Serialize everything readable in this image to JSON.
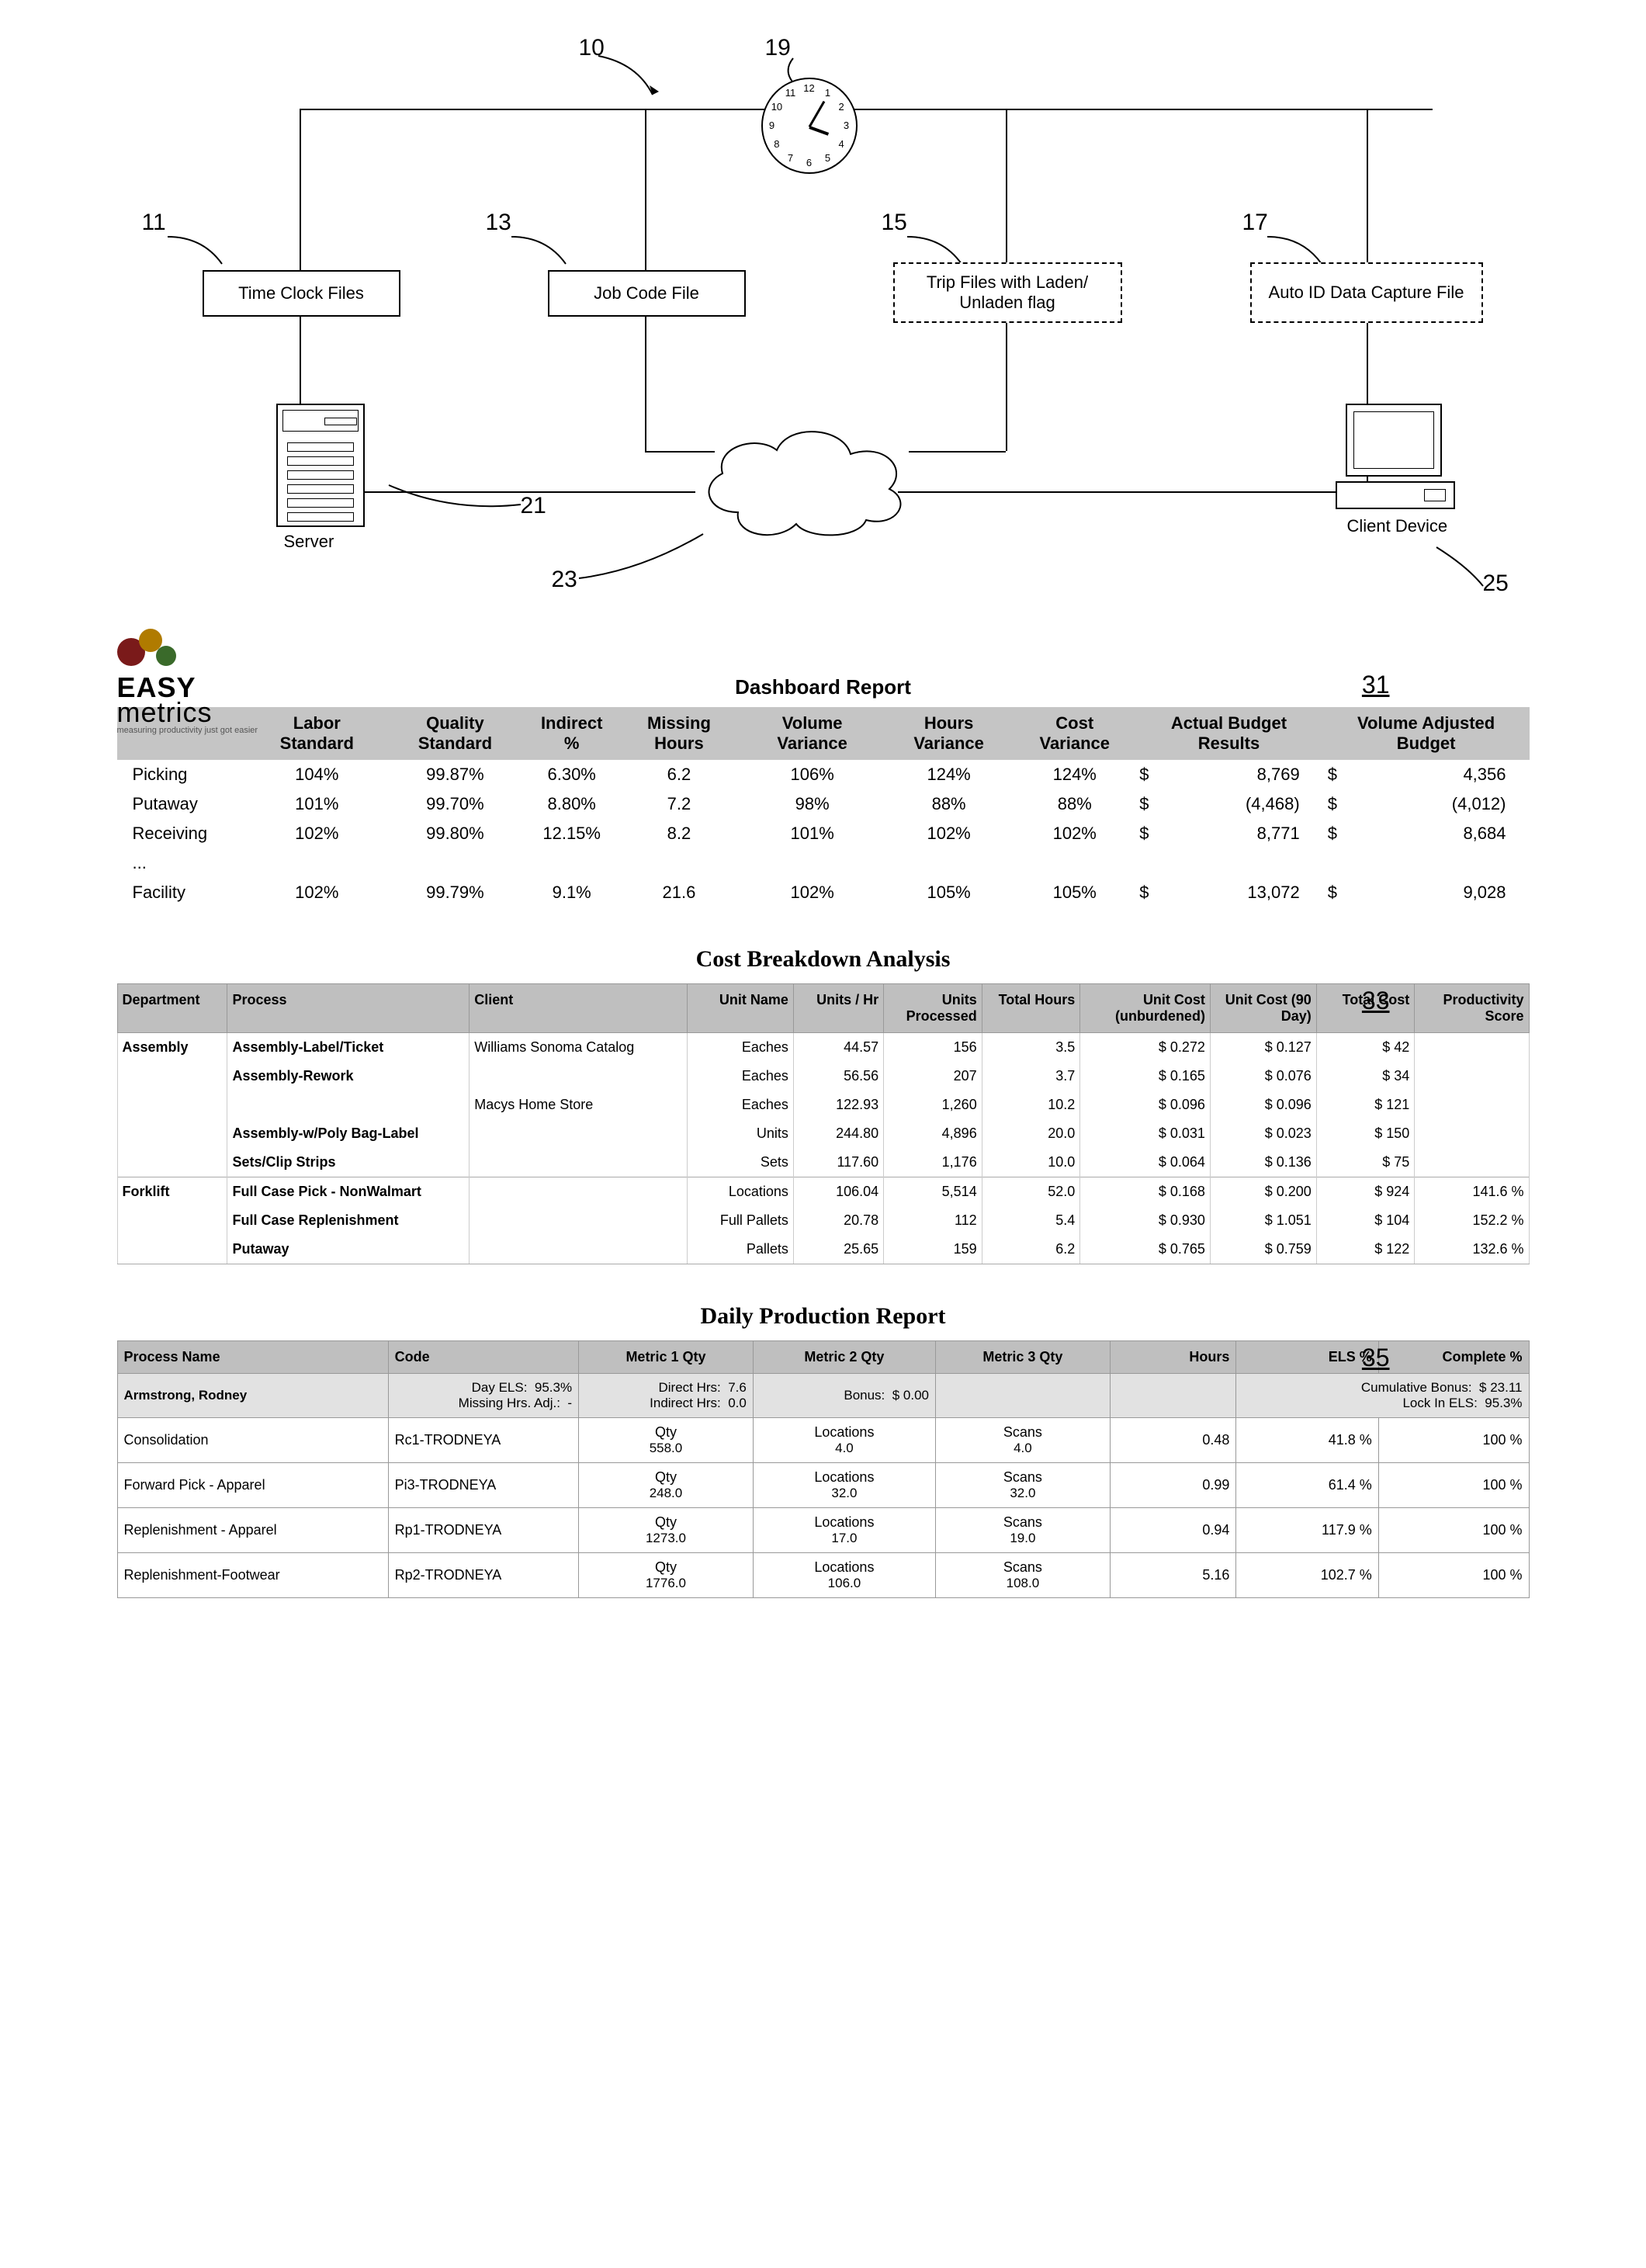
{
  "diagram": {
    "labels": {
      "n10": "10",
      "n11": "11",
      "n13": "13",
      "n15": "15",
      "n17": "17",
      "n19": "19",
      "n21": "21",
      "n23": "23",
      "n25": "25"
    },
    "boxes": {
      "timeclock": "Time Clock Files",
      "jobcode": "Job Code File",
      "tripfiles": "Trip Files with Laden/ Unladen flag",
      "autocapture": "Auto ID Data Capture File"
    },
    "captions": {
      "server": "Server",
      "client": "Client Device"
    },
    "clock_numbers": [
      "12",
      "1",
      "2",
      "3",
      "4",
      "5",
      "6",
      "7",
      "8",
      "9",
      "10",
      "11"
    ]
  },
  "dashboard": {
    "logo_line1": "EASY",
    "logo_line2": "metrics",
    "logo_sub": "measuring productivity just got easier",
    "title": "Dashboard Report",
    "fig": "31",
    "headers": [
      "",
      "Labor Standard",
      "Quality Standard",
      "Indirect %",
      "Missing Hours",
      "Volume Variance",
      "Hours Variance",
      "Cost Variance",
      "Actual Budget Results",
      "Volume Adjusted Budget"
    ],
    "rows": [
      [
        "Picking",
        "104%",
        "99.87%",
        "6.30%",
        "6.2",
        "106%",
        "124%",
        "124%",
        "$",
        "8,769",
        "$",
        "4,356"
      ],
      [
        "Putaway",
        "101%",
        "99.70%",
        "8.80%",
        "7.2",
        "98%",
        "88%",
        "88%",
        "$",
        "(4,468)",
        "$",
        "(4,012)"
      ],
      [
        "Receiving",
        "102%",
        "99.80%",
        "12.15%",
        "8.2",
        "101%",
        "102%",
        "102%",
        "$",
        "8,771",
        "$",
        "8,684"
      ]
    ],
    "ellipsis": "...",
    "facility": [
      "Facility",
      "102%",
      "99.79%",
      "9.1%",
      "21.6",
      "102%",
      "105%",
      "105%",
      "$",
      "13,072",
      "$",
      "9,028"
    ]
  },
  "cost": {
    "title": "Cost Breakdown Analysis",
    "fig": "33",
    "headers": [
      "Department",
      "Process",
      "Client",
      "Unit Name",
      "Units / Hr",
      "Units Processed",
      "Total Hours",
      "Unit Cost (unburdened)",
      "Unit Cost (90 Day)",
      "Total Cost",
      "Productivity Score"
    ],
    "rows": [
      {
        "dep": "Assembly",
        "proc": "Assembly-Label/Ticket",
        "client": "Williams Sonoma Catalog",
        "unit": "Eaches",
        "uph": "44.57",
        "up": "156",
        "th": "3.5",
        "uc1": "$ 0.272",
        "uc2": "$ 0.127",
        "tc": "$ 42",
        "ps": ""
      },
      {
        "dep": "",
        "proc": "Assembly-Rework",
        "client": "",
        "unit": "Eaches",
        "uph": "56.56",
        "up": "207",
        "th": "3.7",
        "uc1": "$ 0.165",
        "uc2": "$ 0.076",
        "tc": "$ 34",
        "ps": ""
      },
      {
        "dep": "",
        "proc": "",
        "client": "Macys Home Store",
        "unit": "Eaches",
        "uph": "122.93",
        "up": "1,260",
        "th": "10.2",
        "uc1": "$ 0.096",
        "uc2": "$ 0.096",
        "tc": "$ 121",
        "ps": ""
      },
      {
        "dep": "",
        "proc": "Assembly-w/Poly Bag-Label",
        "client": "",
        "unit": "Units",
        "uph": "244.80",
        "up": "4,896",
        "th": "20.0",
        "uc1": "$ 0.031",
        "uc2": "$ 0.023",
        "tc": "$ 150",
        "ps": ""
      },
      {
        "dep": "",
        "proc": "Sets/Clip Strips",
        "client": "",
        "unit": "Sets",
        "uph": "117.60",
        "up": "1,176",
        "th": "10.0",
        "uc1": "$ 0.064",
        "uc2": "$ 0.136",
        "tc": "$ 75",
        "ps": ""
      },
      {
        "dep": "Forklift",
        "proc": "Full Case Pick - NonWalmart",
        "client": "",
        "unit": "Locations",
        "uph": "106.04",
        "up": "5,514",
        "th": "52.0",
        "uc1": "$ 0.168",
        "uc2": "$ 0.200",
        "tc": "$ 924",
        "ps": "141.6 %"
      },
      {
        "dep": "",
        "proc": "Full Case Replenishment",
        "client": "",
        "unit": "Full Pallets",
        "uph": "20.78",
        "up": "112",
        "th": "5.4",
        "uc1": "$ 0.930",
        "uc2": "$ 1.051",
        "tc": "$ 104",
        "ps": "152.2 %"
      },
      {
        "dep": "",
        "proc": "Putaway",
        "client": "",
        "unit": "Pallets",
        "uph": "25.65",
        "up": "159",
        "th": "6.2",
        "uc1": "$ 0.765",
        "uc2": "$ 0.759",
        "tc": "$ 122",
        "ps": "132.6 %"
      }
    ]
  },
  "daily": {
    "title": "Daily Production Report",
    "fig": "35",
    "headers": [
      "Process Name",
      "Code",
      "Metric 1 Qty",
      "Metric 2 Qty",
      "Metric 3 Qty",
      "Hours",
      "ELS %",
      "Complete %"
    ],
    "summary_name": "Armstrong, Rodney",
    "summary": {
      "day_els_l": "Day ELS:",
      "day_els_v": "95.3%",
      "missing_l": "Missing Hrs. Adj.:",
      "missing_v": "-",
      "direct_l": "Direct Hrs:",
      "direct_v": "7.6",
      "indirect_l": "Indirect Hrs:",
      "indirect_v": "0.0",
      "bonus_l": "Bonus:",
      "bonus_v": "$ 0.00",
      "cum_l": "Cumulative Bonus:",
      "cum_v": "$ 23.11",
      "lock_l": "Lock In ELS:",
      "lock_v": "95.3%"
    },
    "rows": [
      {
        "proc": "Consolidation",
        "code": "Rc1-TRODNEYA",
        "m1l": "Qty",
        "m1v": "558.0",
        "m2l": "Locations",
        "m2v": "4.0",
        "m3l": "Scans",
        "m3v": "4.0",
        "hrs": "0.48",
        "els": "41.8 %",
        "comp": "100 %"
      },
      {
        "proc": "Forward Pick - Apparel",
        "code": "Pi3-TRODNEYA",
        "m1l": "Qty",
        "m1v": "248.0",
        "m2l": "Locations",
        "m2v": "32.0",
        "m3l": "Scans",
        "m3v": "32.0",
        "hrs": "0.99",
        "els": "61.4 %",
        "comp": "100 %"
      },
      {
        "proc": "Replenishment - Apparel",
        "code": "Rp1-TRODNEYA",
        "m1l": "Qty",
        "m1v": "1273.0",
        "m2l": "Locations",
        "m2v": "17.0",
        "m3l": "Scans",
        "m3v": "19.0",
        "hrs": "0.94",
        "els": "117.9 %",
        "comp": "100 %"
      },
      {
        "proc": "Replenishment-Footwear",
        "code": "Rp2-TRODNEYA",
        "m1l": "Qty",
        "m1v": "1776.0",
        "m2l": "Locations",
        "m2v": "106.0",
        "m3l": "Scans",
        "m3v": "108.0",
        "hrs": "5.16",
        "els": "102.7 %",
        "comp": "100 %"
      }
    ]
  }
}
